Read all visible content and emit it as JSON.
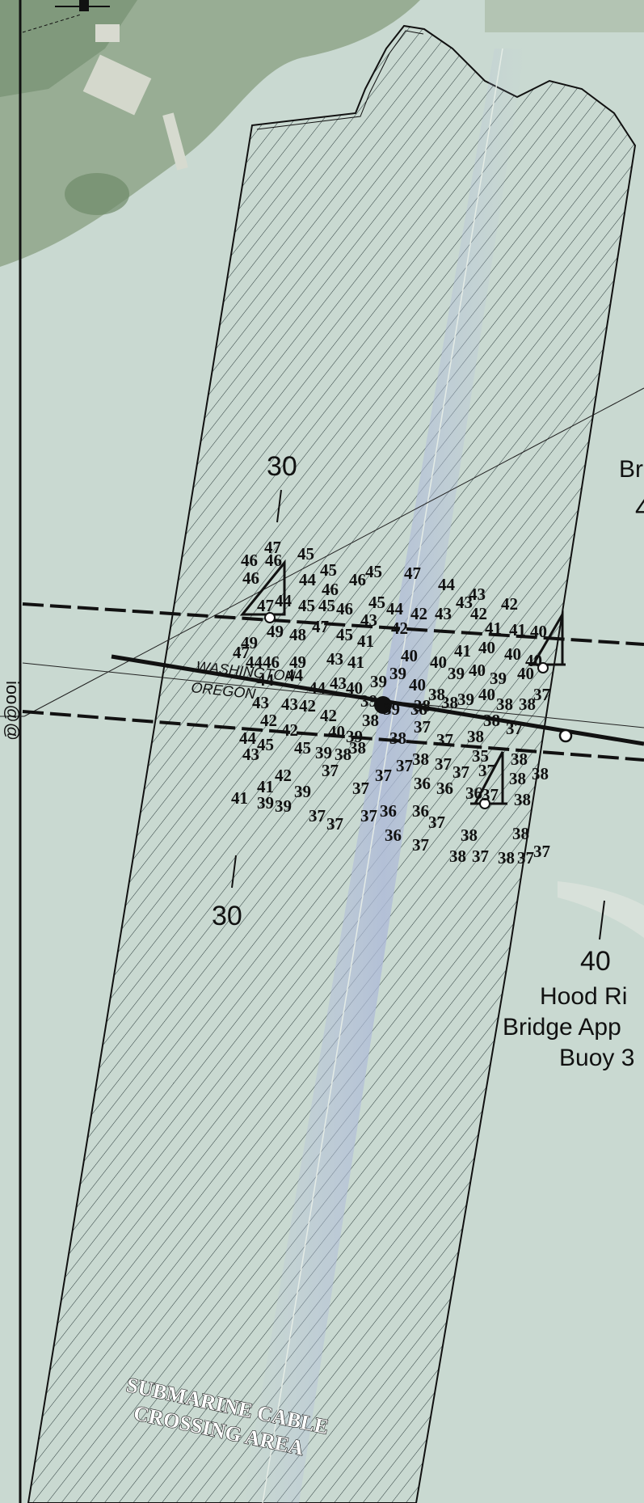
{
  "map": {
    "contour_labels": [
      "30",
      "30",
      "40"
    ],
    "border_labels": {
      "upper": "WASHINGTON",
      "lower": "OREGON"
    },
    "area_label": [
      "SUBMARINE CABLE",
      "CROSSING AREA"
    ],
    "edge_label_right": [
      "Br",
      "4"
    ],
    "buoy_label": [
      "Hood Ri",
      "Bridge App",
      "Buoy 3"
    ],
    "edge_label_left": "ioo@@",
    "colors": {
      "water": "#c9d9d1",
      "land": "#8fa58a",
      "hatch": "#2a3a3a",
      "ink": "#111111"
    },
    "soundings": [
      {
        "v": "47",
        "x": 327,
        "y": 684
      },
      {
        "v": "46",
        "x": 298,
        "y": 700
      },
      {
        "v": "46",
        "x": 328,
        "y": 700
      },
      {
        "v": "45",
        "x": 368,
        "y": 692
      },
      {
        "v": "46",
        "x": 300,
        "y": 722
      },
      {
        "v": "45",
        "x": 396,
        "y": 712
      },
      {
        "v": "44",
        "x": 370,
        "y": 724
      },
      {
        "v": "46",
        "x": 398,
        "y": 736
      },
      {
        "v": "46",
        "x": 432,
        "y": 724
      },
      {
        "v": "45",
        "x": 452,
        "y": 714
      },
      {
        "v": "47",
        "x": 500,
        "y": 716
      },
      {
        "v": "44",
        "x": 542,
        "y": 730
      },
      {
        "v": "43",
        "x": 580,
        "y": 742
      },
      {
        "v": "42",
        "x": 620,
        "y": 754
      },
      {
        "v": "47",
        "x": 318,
        "y": 756
      },
      {
        "v": "44",
        "x": 340,
        "y": 750
      },
      {
        "v": "45",
        "x": 369,
        "y": 756
      },
      {
        "v": "45",
        "x": 394,
        "y": 756
      },
      {
        "v": "46",
        "x": 416,
        "y": 760
      },
      {
        "v": "45",
        "x": 456,
        "y": 752
      },
      {
        "v": "44",
        "x": 478,
        "y": 760
      },
      {
        "v": "42",
        "x": 508,
        "y": 766
      },
      {
        "v": "43",
        "x": 538,
        "y": 766
      },
      {
        "v": "43",
        "x": 564,
        "y": 752
      },
      {
        "v": "42",
        "x": 582,
        "y": 766
      },
      {
        "v": "41",
        "x": 600,
        "y": 784
      },
      {
        "v": "41",
        "x": 630,
        "y": 786
      },
      {
        "v": "40",
        "x": 656,
        "y": 788
      },
      {
        "v": "43",
        "x": 446,
        "y": 774
      },
      {
        "v": "42",
        "x": 484,
        "y": 784
      },
      {
        "v": "49",
        "x": 330,
        "y": 788
      },
      {
        "v": "48",
        "x": 358,
        "y": 792
      },
      {
        "v": "47",
        "x": 386,
        "y": 782
      },
      {
        "v": "45",
        "x": 416,
        "y": 792
      },
      {
        "v": "41",
        "x": 442,
        "y": 800
      },
      {
        "v": "40",
        "x": 496,
        "y": 818
      },
      {
        "v": "40",
        "x": 532,
        "y": 826
      },
      {
        "v": "41",
        "x": 562,
        "y": 812
      },
      {
        "v": "40",
        "x": 592,
        "y": 808
      },
      {
        "v": "40",
        "x": 624,
        "y": 816
      },
      {
        "v": "40",
        "x": 650,
        "y": 824
      },
      {
        "v": "49",
        "x": 298,
        "y": 802
      },
      {
        "v": "47",
        "x": 288,
        "y": 814
      },
      {
        "v": "44",
        "x": 304,
        "y": 826
      },
      {
        "v": "46",
        "x": 325,
        "y": 826
      },
      {
        "v": "49",
        "x": 358,
        "y": 826
      },
      {
        "v": "43",
        "x": 404,
        "y": 822
      },
      {
        "v": "41",
        "x": 430,
        "y": 826
      },
      {
        "v": "39",
        "x": 458,
        "y": 850
      },
      {
        "v": "39",
        "x": 482,
        "y": 840
      },
      {
        "v": "40",
        "x": 506,
        "y": 854
      },
      {
        "v": "39",
        "x": 554,
        "y": 840
      },
      {
        "v": "40",
        "x": 580,
        "y": 836
      },
      {
        "v": "39",
        "x": 606,
        "y": 846
      },
      {
        "v": "40",
        "x": 640,
        "y": 840
      },
      {
        "v": "44",
        "x": 318,
        "y": 848
      },
      {
        "v": "44",
        "x": 354,
        "y": 842
      },
      {
        "v": "44",
        "x": 382,
        "y": 858
      },
      {
        "v": "43",
        "x": 408,
        "y": 852
      },
      {
        "v": "40",
        "x": 428,
        "y": 858
      },
      {
        "v": "38",
        "x": 530,
        "y": 866
      },
      {
        "v": "38",
        "x": 512,
        "y": 880
      },
      {
        "v": "38",
        "x": 546,
        "y": 876
      },
      {
        "v": "39",
        "x": 566,
        "y": 872
      },
      {
        "v": "40",
        "x": 592,
        "y": 866
      },
      {
        "v": "38",
        "x": 614,
        "y": 878
      },
      {
        "v": "38",
        "x": 642,
        "y": 878
      },
      {
        "v": "37",
        "x": 660,
        "y": 866
      },
      {
        "v": "43",
        "x": 312,
        "y": 876
      },
      {
        "v": "43",
        "x": 348,
        "y": 878
      },
      {
        "v": "42",
        "x": 370,
        "y": 880
      },
      {
        "v": "42",
        "x": 396,
        "y": 892
      },
      {
        "v": "39",
        "x": 446,
        "y": 874
      },
      {
        "v": "39",
        "x": 474,
        "y": 884
      },
      {
        "v": "38",
        "x": 508,
        "y": 884
      },
      {
        "v": "38",
        "x": 598,
        "y": 898
      },
      {
        "v": "37",
        "x": 626,
        "y": 908
      },
      {
        "v": "42",
        "x": 322,
        "y": 898
      },
      {
        "v": "42",
        "x": 348,
        "y": 910
      },
      {
        "v": "40",
        "x": 406,
        "y": 912
      },
      {
        "v": "39",
        "x": 428,
        "y": 918
      },
      {
        "v": "38",
        "x": 448,
        "y": 898
      },
      {
        "v": "38",
        "x": 482,
        "y": 920
      },
      {
        "v": "37",
        "x": 512,
        "y": 906
      },
      {
        "v": "37",
        "x": 540,
        "y": 922
      },
      {
        "v": "38",
        "x": 578,
        "y": 918
      },
      {
        "v": "38",
        "x": 432,
        "y": 932
      },
      {
        "v": "44",
        "x": 296,
        "y": 920
      },
      {
        "v": "45",
        "x": 318,
        "y": 928
      },
      {
        "v": "43",
        "x": 300,
        "y": 940
      },
      {
        "v": "45",
        "x": 364,
        "y": 932
      },
      {
        "v": "39",
        "x": 390,
        "y": 938
      },
      {
        "v": "38",
        "x": 414,
        "y": 940
      },
      {
        "v": "35",
        "x": 584,
        "y": 942
      },
      {
        "v": "38",
        "x": 632,
        "y": 946
      },
      {
        "v": "38",
        "x": 658,
        "y": 964
      },
      {
        "v": "37",
        "x": 398,
        "y": 960
      },
      {
        "v": "37",
        "x": 464,
        "y": 966
      },
      {
        "v": "37",
        "x": 436,
        "y": 982
      },
      {
        "v": "37",
        "x": 490,
        "y": 954
      },
      {
        "v": "38",
        "x": 510,
        "y": 946
      },
      {
        "v": "37",
        "x": 538,
        "y": 952
      },
      {
        "v": "37",
        "x": 560,
        "y": 962
      },
      {
        "v": "37",
        "x": 592,
        "y": 960
      },
      {
        "v": "38",
        "x": 630,
        "y": 970
      },
      {
        "v": "41",
        "x": 318,
        "y": 980
      },
      {
        "v": "42",
        "x": 340,
        "y": 966
      },
      {
        "v": "39",
        "x": 364,
        "y": 986
      },
      {
        "v": "36",
        "x": 512,
        "y": 976
      },
      {
        "v": "36",
        "x": 540,
        "y": 982
      },
      {
        "v": "36",
        "x": 576,
        "y": 988
      },
      {
        "v": "37",
        "x": 596,
        "y": 990
      },
      {
        "v": "38",
        "x": 636,
        "y": 996
      },
      {
        "v": "41",
        "x": 286,
        "y": 994
      },
      {
        "v": "39",
        "x": 318,
        "y": 1000
      },
      {
        "v": "39",
        "x": 340,
        "y": 1004
      },
      {
        "v": "37",
        "x": 382,
        "y": 1016
      },
      {
        "v": "37",
        "x": 404,
        "y": 1026
      },
      {
        "v": "37",
        "x": 446,
        "y": 1016
      },
      {
        "v": "36",
        "x": 470,
        "y": 1010
      },
      {
        "v": "36",
        "x": 510,
        "y": 1010
      },
      {
        "v": "37",
        "x": 530,
        "y": 1024
      },
      {
        "v": "38",
        "x": 570,
        "y": 1040
      },
      {
        "v": "38",
        "x": 634,
        "y": 1038
      },
      {
        "v": "36",
        "x": 476,
        "y": 1040
      },
      {
        "v": "37",
        "x": 510,
        "y": 1052
      },
      {
        "v": "38",
        "x": 556,
        "y": 1066
      },
      {
        "v": "37",
        "x": 584,
        "y": 1066
      },
      {
        "v": "38",
        "x": 616,
        "y": 1068
      },
      {
        "v": "37",
        "x": 640,
        "y": 1068
      },
      {
        "v": "37",
        "x": 660,
        "y": 1060
      }
    ]
  }
}
